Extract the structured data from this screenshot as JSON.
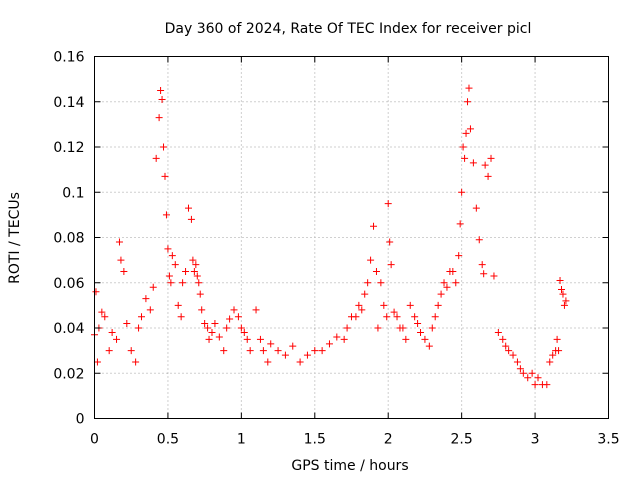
{
  "chart_data": {
    "type": "scatter",
    "title": "Day 360 of 2024, Rate Of TEC Index for receiver picl",
    "xlabel": "GPS time / hours",
    "ylabel": "ROTI / TECUs",
    "xlim": [
      0,
      3.5
    ],
    "ylim": [
      0,
      0.16
    ],
    "xticks": [
      0,
      0.5,
      1,
      1.5,
      2,
      2.5,
      3,
      3.5
    ],
    "xtick_labels": [
      "0",
      "0.5",
      "1",
      "1.5",
      "2",
      "2.5",
      "3",
      "3.5"
    ],
    "yticks": [
      0,
      0.02,
      0.04,
      0.06,
      0.08,
      0.1,
      0.12,
      0.14,
      0.16
    ],
    "ytick_labels": [
      "0",
      "0.02",
      "0.04",
      "0.06",
      "0.08",
      "0.1",
      "0.12",
      "0.14",
      "0.16"
    ],
    "grid": true,
    "marker": "+",
    "color": "#ff0000",
    "series": [
      {
        "name": "ROTI",
        "x": [
          0.0,
          0.01,
          0.02,
          0.03,
          0.05,
          0.07,
          0.1,
          0.12,
          0.15,
          0.17,
          0.18,
          0.2,
          0.22,
          0.25,
          0.28,
          0.3,
          0.32,
          0.35,
          0.38,
          0.4,
          0.42,
          0.44,
          0.45,
          0.46,
          0.47,
          0.48,
          0.49,
          0.5,
          0.51,
          0.52,
          0.53,
          0.55,
          0.57,
          0.59,
          0.6,
          0.62,
          0.64,
          0.66,
          0.67,
          0.68,
          0.69,
          0.7,
          0.71,
          0.72,
          0.73,
          0.75,
          0.77,
          0.78,
          0.8,
          0.82,
          0.85,
          0.88,
          0.9,
          0.92,
          0.95,
          0.98,
          1.0,
          1.02,
          1.04,
          1.06,
          1.1,
          1.13,
          1.15,
          1.18,
          1.2,
          1.25,
          1.3,
          1.35,
          1.4,
          1.45,
          1.5,
          1.55,
          1.6,
          1.65,
          1.7,
          1.72,
          1.75,
          1.78,
          1.8,
          1.82,
          1.84,
          1.86,
          1.88,
          1.9,
          1.92,
          1.93,
          1.95,
          1.97,
          1.99,
          2.0,
          2.01,
          2.02,
          2.04,
          2.06,
          2.08,
          2.1,
          2.12,
          2.15,
          2.18,
          2.2,
          2.22,
          2.25,
          2.28,
          2.3,
          2.32,
          2.34,
          2.36,
          2.38,
          2.4,
          2.42,
          2.44,
          2.46,
          2.48,
          2.49,
          2.5,
          2.51,
          2.52,
          2.53,
          2.54,
          2.55,
          2.56,
          2.58,
          2.6,
          2.62,
          2.64,
          2.65,
          2.66,
          2.68,
          2.7,
          2.72,
          2.75,
          2.78,
          2.8,
          2.82,
          2.85,
          2.88,
          2.9,
          2.92,
          2.95,
          2.98,
          3.0,
          3.02,
          3.05,
          3.08,
          3.1,
          3.12,
          3.14,
          3.15,
          3.16,
          3.17,
          3.18,
          3.19,
          3.2,
          3.21
        ],
        "y": [
          0.037,
          0.056,
          0.025,
          0.04,
          0.047,
          0.045,
          0.03,
          0.038,
          0.035,
          0.078,
          0.07,
          0.065,
          0.042,
          0.03,
          0.025,
          0.04,
          0.045,
          0.053,
          0.048,
          0.058,
          0.115,
          0.133,
          0.145,
          0.141,
          0.12,
          0.107,
          0.09,
          0.075,
          0.063,
          0.06,
          0.072,
          0.068,
          0.05,
          0.045,
          0.06,
          0.065,
          0.093,
          0.088,
          0.07,
          0.065,
          0.068,
          0.063,
          0.06,
          0.055,
          0.048,
          0.042,
          0.04,
          0.035,
          0.038,
          0.042,
          0.036,
          0.03,
          0.04,
          0.044,
          0.048,
          0.045,
          0.04,
          0.038,
          0.035,
          0.03,
          0.048,
          0.035,
          0.03,
          0.025,
          0.033,
          0.03,
          0.028,
          0.032,
          0.025,
          0.028,
          0.03,
          0.03,
          0.033,
          0.036,
          0.035,
          0.04,
          0.045,
          0.045,
          0.05,
          0.048,
          0.055,
          0.06,
          0.07,
          0.085,
          0.065,
          0.04,
          0.06,
          0.05,
          0.045,
          0.095,
          0.078,
          0.068,
          0.047,
          0.045,
          0.04,
          0.04,
          0.035,
          0.05,
          0.045,
          0.042,
          0.038,
          0.035,
          0.032,
          0.04,
          0.045,
          0.05,
          0.055,
          0.06,
          0.058,
          0.065,
          0.065,
          0.06,
          0.072,
          0.086,
          0.1,
          0.12,
          0.115,
          0.126,
          0.14,
          0.146,
          0.128,
          0.113,
          0.093,
          0.079,
          0.068,
          0.064,
          0.112,
          0.107,
          0.115,
          0.063,
          0.038,
          0.035,
          0.032,
          0.03,
          0.028,
          0.025,
          0.022,
          0.02,
          0.018,
          0.02,
          0.015,
          0.018,
          0.015,
          0.015,
          0.025,
          0.028,
          0.03,
          0.035,
          0.03,
          0.061,
          0.057,
          0.055,
          0.05,
          0.052
        ]
      }
    ]
  }
}
